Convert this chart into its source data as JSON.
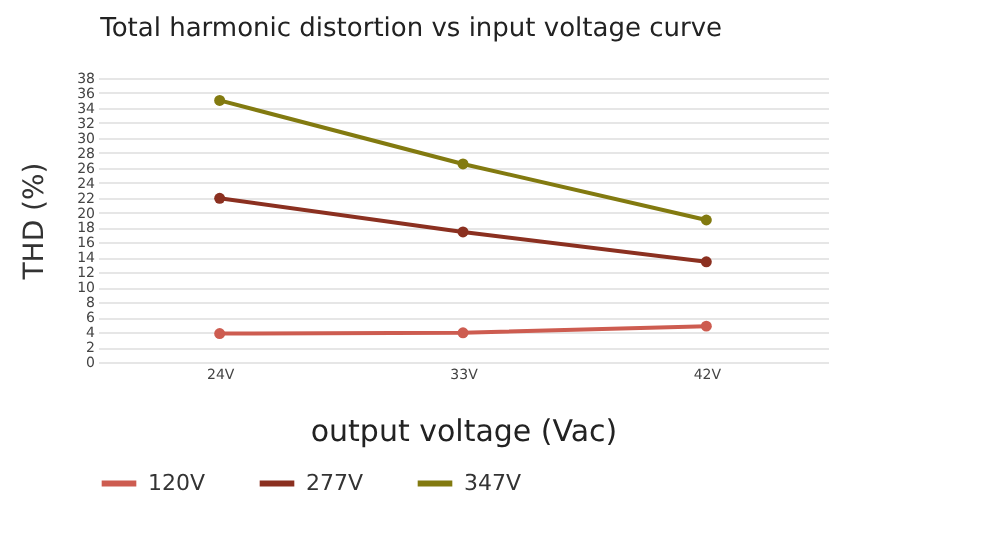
{
  "chart_data": {
    "type": "line",
    "title": "Total harmonic distortion vs input voltage curve",
    "xlabel": "output voltage (Vac)",
    "ylabel": "THD (%)",
    "categories": [
      "24V",
      "33V",
      "42V"
    ],
    "series": [
      {
        "name": "120V",
        "color": "#cd5c50",
        "values": [
          3.8,
          3.9,
          4.8
        ]
      },
      {
        "name": "277V",
        "color": "#8b3020",
        "values": [
          21.9,
          17.4,
          13.4
        ]
      },
      {
        "name": "347V",
        "color": "#827a10",
        "values": [
          35,
          26.5,
          19
        ]
      }
    ],
    "ylim": [
      0,
      38
    ],
    "yticks": [
      0,
      2,
      4,
      6,
      8,
      10,
      12,
      14,
      16,
      18,
      20,
      22,
      24,
      26,
      28,
      30,
      32,
      34,
      36,
      38
    ],
    "grid": "y",
    "legend": "bottom",
    "marker": "circle",
    "line_style": "solid"
  }
}
